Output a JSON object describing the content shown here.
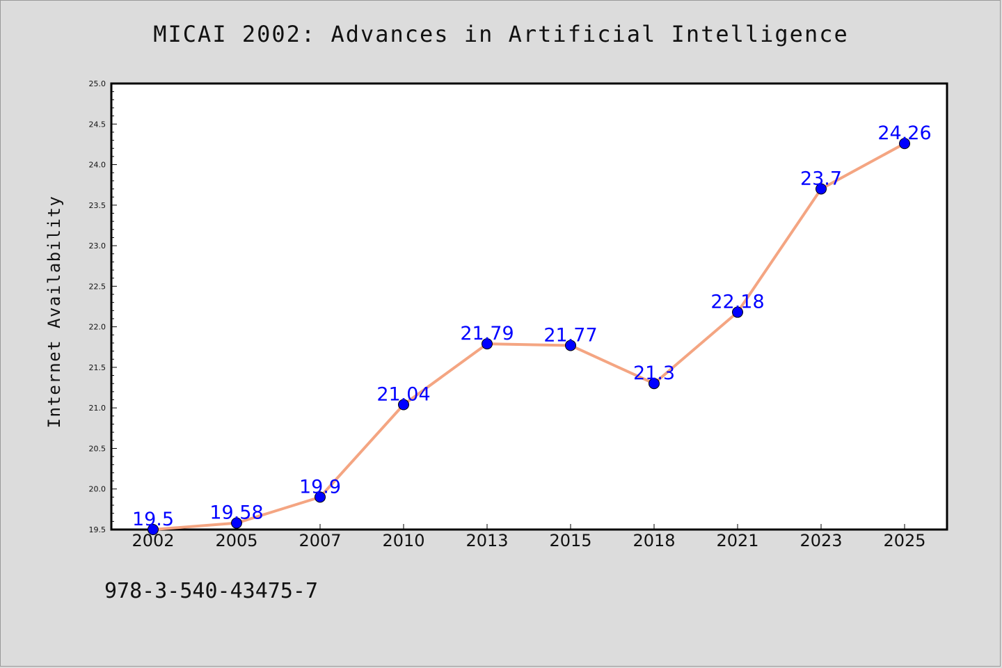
{
  "chart_data": {
    "type": "line",
    "title": "MICAI 2002: Advances in Artificial Intelligence",
    "xlabel": "",
    "ylabel": "Internet Availability",
    "categories": [
      "2002",
      "2005",
      "2007",
      "2010",
      "2013",
      "2015",
      "2018",
      "2021",
      "2023",
      "2025"
    ],
    "series": [
      {
        "values": [
          19.5,
          19.58,
          19.9,
          21.04,
          21.79,
          21.77,
          21.3,
          22.18,
          23.7,
          24.26
        ],
        "labels": [
          "19.5",
          "19.58",
          "19.9",
          "21.04",
          "21.79",
          "21.77",
          "21.3",
          "22.18",
          "23.7",
          "24.26"
        ]
      }
    ],
    "ylim": [
      19.5,
      25.0
    ],
    "yticks": [
      "19.5",
      "20.0",
      "20.5",
      "21.0",
      "21.5",
      "22.0",
      "22.5",
      "23.0",
      "23.5",
      "24.0",
      "24.5",
      "25.0"
    ],
    "grid": false,
    "colors": {
      "line": "#f4a582",
      "marker": "#0000ff",
      "label": "#0000ff"
    }
  },
  "footer": {
    "isbn": "978-3-540-43475-7"
  }
}
